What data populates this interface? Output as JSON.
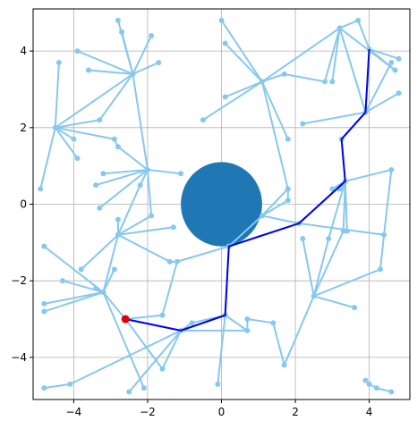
{
  "chart_data": {
    "type": "network",
    "xlim": [
      -5.1,
      5.1
    ],
    "ylim": [
      -5.1,
      5.1
    ],
    "xticks": [
      {
        "value": -4,
        "label": "−4"
      },
      {
        "value": -2,
        "label": "−2"
      },
      0,
      2,
      4
    ],
    "yticks": [
      {
        "value": -4,
        "label": "−4"
      },
      {
        "value": -2,
        "label": "−2"
      },
      0,
      2,
      4
    ],
    "grid": true,
    "edge_color": "#87c8ee",
    "path_color": "#0000ee",
    "start_color": "#e00000",
    "obstacle_color": "#1f77b4",
    "obstacle": {
      "x": 0,
      "y": 0,
      "r": 1.1
    },
    "nodes": {
      "x": [
        -2.6,
        -1.1,
        0.1,
        0.2,
        2.1,
        3.35,
        3.25,
        3.9,
        4.0,
        -4.5,
        -4.4,
        -4.9,
        -3.9,
        -4.0,
        -3.3,
        -2.9,
        -2.4,
        -3.9,
        -3.6,
        -2.8,
        -2.7,
        -1.9,
        -1.7,
        -2.8,
        -2.0,
        -3.2,
        -3.4,
        -3.3,
        -2.2,
        -1.9,
        -1.1,
        -2.8,
        -2.8,
        -3.8,
        -3.2,
        -4.8,
        -4.3,
        -4.8,
        -4.8,
        -3.4,
        -2.9,
        -1.4,
        -1.2,
        -1.3,
        -1.6,
        -1.6,
        -2.1,
        -2.5,
        -4.1,
        -4.8,
        -0.8,
        -0.1,
        0.7,
        0.7,
        1.7,
        1.4,
        2.5,
        3.6,
        2.2,
        2.9,
        3.3,
        4.4,
        4.3,
        4.6,
        3.2,
        1.8,
        1.1,
        1.8,
        2.2,
        1.1,
        0.1,
        -0.5,
        0.0,
        0.1,
        1.7,
        2.8,
        3.2,
        3.7,
        3.0,
        4.6,
        4.8,
        4.8,
        4.7,
        4.0,
        4.2,
        4.6,
        3.9,
        1.8,
        3.0,
        3.4
      ],
      "y": [
        -3.0,
        -3.3,
        -2.9,
        -1.1,
        -0.5,
        0.6,
        1.7,
        2.4,
        4.05,
        2.0,
        3.7,
        0.4,
        1.2,
        1.7,
        2.2,
        1.7,
        3.4,
        4.0,
        3.5,
        4.8,
        4.5,
        4.4,
        3.7,
        1.5,
        0.9,
        0.8,
        0.5,
        -0.1,
        0.5,
        -0.3,
        0.8,
        -0.8,
        -0.4,
        -1.7,
        -2.3,
        -1.1,
        -2.0,
        -2.6,
        -2.8,
        -2.2,
        -1.7,
        -1.5,
        -1.5,
        -0.6,
        -2.9,
        -4.3,
        -4.8,
        -4.9,
        -4.7,
        -4.8,
        -3.1,
        -4.7,
        -3.3,
        -3.0,
        -4.2,
        -3.1,
        -2.4,
        -2.7,
        -0.9,
        -0.9,
        -0.7,
        -0.8,
        -1.7,
        0.9,
        0.4,
        0.4,
        -0.3,
        1.7,
        2.1,
        3.2,
        2.8,
        2.2,
        4.8,
        4.2,
        3.4,
        3.2,
        4.6,
        4.8,
        3.2,
        3.7,
        2.9,
        3.8,
        3.5,
        -4.7,
        -4.8,
        -4.9,
        -4.6,
        0.1,
        0.4,
        -0.7
      ]
    },
    "edges": [
      [
        9,
        10
      ],
      [
        9,
        11
      ],
      [
        9,
        12
      ],
      [
        9,
        13
      ],
      [
        9,
        14
      ],
      [
        9,
        15
      ],
      [
        9,
        16
      ],
      [
        16,
        17
      ],
      [
        16,
        18
      ],
      [
        16,
        19
      ],
      [
        16,
        20
      ],
      [
        16,
        21
      ],
      [
        16,
        22
      ],
      [
        16,
        14
      ],
      [
        15,
        23
      ],
      [
        23,
        24
      ],
      [
        24,
        25
      ],
      [
        24,
        26
      ],
      [
        24,
        27
      ],
      [
        24,
        28
      ],
      [
        24,
        29
      ],
      [
        24,
        30
      ],
      [
        24,
        16
      ],
      [
        28,
        31
      ],
      [
        31,
        32
      ],
      [
        31,
        33
      ],
      [
        31,
        34
      ],
      [
        31,
        29
      ],
      [
        31,
        43
      ],
      [
        31,
        41
      ],
      [
        34,
        35
      ],
      [
        34,
        36
      ],
      [
        34,
        37
      ],
      [
        34,
        38
      ],
      [
        34,
        39
      ],
      [
        34,
        40
      ],
      [
        34,
        0
      ],
      [
        34,
        46
      ],
      [
        0,
        44
      ],
      [
        0,
        45
      ],
      [
        1,
        50
      ],
      [
        1,
        45
      ],
      [
        1,
        47
      ],
      [
        1,
        48
      ],
      [
        48,
        49
      ],
      [
        50,
        2
      ],
      [
        2,
        51
      ],
      [
        1,
        52
      ],
      [
        52,
        53
      ],
      [
        53,
        55
      ],
      [
        55,
        54
      ],
      [
        54,
        56
      ],
      [
        56,
        57
      ],
      [
        56,
        58
      ],
      [
        56,
        59
      ],
      [
        56,
        60
      ],
      [
        56,
        62
      ],
      [
        61,
        62
      ],
      [
        61,
        63
      ],
      [
        61,
        4
      ],
      [
        4,
        66
      ],
      [
        66,
        3
      ],
      [
        66,
        65
      ],
      [
        66,
        87
      ],
      [
        65,
        87
      ],
      [
        5,
        88
      ],
      [
        5,
        64
      ],
      [
        5,
        63
      ],
      [
        5,
        59
      ],
      [
        5,
        60
      ],
      [
        5,
        89
      ],
      [
        3,
        42
      ],
      [
        42,
        41
      ],
      [
        42,
        44
      ],
      [
        7,
        68
      ],
      [
        7,
        80
      ],
      [
        7,
        76
      ],
      [
        7,
        79
      ],
      [
        8,
        77
      ],
      [
        8,
        81
      ],
      [
        8,
        82
      ],
      [
        76,
        77
      ],
      [
        76,
        75
      ],
      [
        76,
        78
      ],
      [
        76,
        69
      ],
      [
        69,
        70
      ],
      [
        69,
        71
      ],
      [
        69,
        72
      ],
      [
        69,
        73
      ],
      [
        69,
        74
      ],
      [
        69,
        67
      ],
      [
        69,
        65
      ],
      [
        75,
        74
      ],
      [
        76,
        82
      ],
      [
        83,
        84
      ],
      [
        84,
        85
      ],
      [
        83,
        86
      ],
      [
        2,
        52
      ],
      [
        0,
        1
      ],
      [
        1,
        2
      ],
      [
        2,
        3
      ],
      [
        3,
        4
      ],
      [
        4,
        5
      ],
      [
        5,
        6
      ],
      [
        6,
        7
      ],
      [
        7,
        8
      ]
    ],
    "path": [
      0,
      1,
      2,
      3,
      4,
      5,
      6,
      7,
      8
    ],
    "start": 0
  }
}
